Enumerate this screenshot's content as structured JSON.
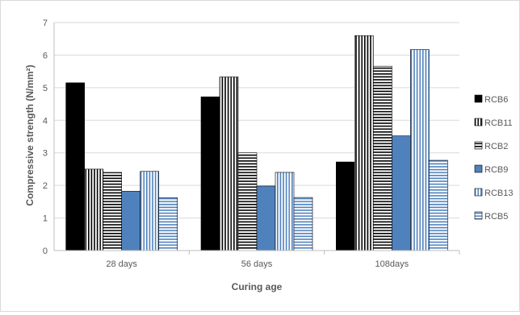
{
  "chart_data": {
    "type": "bar",
    "title": "",
    "xlabel": "Curing age",
    "ylabel": "Compressive strength (N/mm²)",
    "ylim": [
      0,
      7
    ],
    "yticks": [
      "0",
      "1",
      "2",
      "3",
      "4",
      "5",
      "6",
      "7"
    ],
    "categories": [
      "28 days",
      "56 days",
      "108days"
    ],
    "legend_position": "right",
    "grid": "horizontal",
    "series": [
      {
        "name": "RCB6",
        "pattern": "solid-black",
        "color": "#000000",
        "values": [
          5.15,
          4.72,
          2.72
        ]
      },
      {
        "name": "RCB11",
        "pattern": "vertical-stripes",
        "color": "#000000",
        "values": [
          2.5,
          5.33,
          6.6
        ]
      },
      {
        "name": "RCB2",
        "pattern": "horizontal-stripes",
        "color": "#000000",
        "values": [
          2.4,
          3.0,
          5.66
        ]
      },
      {
        "name": "RCB9",
        "pattern": "solid-blue",
        "color": "#4f81bd",
        "values": [
          1.82,
          1.98,
          3.52
        ]
      },
      {
        "name": "RCB13",
        "pattern": "vertical-stripes",
        "color": "#4f81bd",
        "values": [
          2.43,
          2.4,
          6.17
        ]
      },
      {
        "name": "RCB5",
        "pattern": "horizontal-stripes",
        "color": "#4f81bd",
        "values": [
          1.62,
          1.63,
          2.77
        ]
      }
    ]
  }
}
